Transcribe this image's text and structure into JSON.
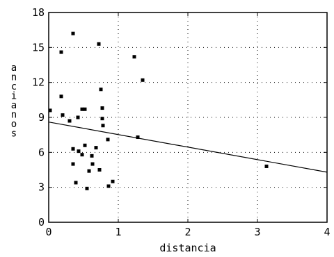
{
  "chart_data": {
    "type": "scatter",
    "xlabel": "distancia",
    "ylabel": "ancianos",
    "xlim": [
      0,
      4
    ],
    "ylim": [
      0,
      18
    ],
    "xticks": [
      0,
      1,
      2,
      3,
      4
    ],
    "yticks": [
      0,
      3,
      6,
      9,
      12,
      15,
      18
    ],
    "grid": true,
    "points": [
      {
        "x": 0.02,
        "y": 9.6
      },
      {
        "x": 0.18,
        "y": 14.6
      },
      {
        "x": 0.18,
        "y": 10.8
      },
      {
        "x": 0.2,
        "y": 9.2
      },
      {
        "x": 0.3,
        "y": 8.7
      },
      {
        "x": 0.35,
        "y": 16.2
      },
      {
        "x": 0.35,
        "y": 6.3
      },
      {
        "x": 0.35,
        "y": 5.0
      },
      {
        "x": 0.39,
        "y": 3.4
      },
      {
        "x": 0.42,
        "y": 9.0
      },
      {
        "x": 0.43,
        "y": 6.1
      },
      {
        "x": 0.48,
        "y": 9.7
      },
      {
        "x": 0.48,
        "y": 5.8
      },
      {
        "x": 0.52,
        "y": 6.6
      },
      {
        "x": 0.52,
        "y": 9.7
      },
      {
        "x": 0.55,
        "y": 2.9
      },
      {
        "x": 0.58,
        "y": 4.4
      },
      {
        "x": 0.62,
        "y": 5.7
      },
      {
        "x": 0.63,
        "y": 5.0
      },
      {
        "x": 0.68,
        "y": 6.4
      },
      {
        "x": 0.72,
        "y": 15.3
      },
      {
        "x": 0.73,
        "y": 4.5
      },
      {
        "x": 0.75,
        "y": 11.4
      },
      {
        "x": 0.77,
        "y": 9.8
      },
      {
        "x": 0.77,
        "y": 8.9
      },
      {
        "x": 0.78,
        "y": 8.3
      },
      {
        "x": 0.85,
        "y": 7.1
      },
      {
        "x": 0.86,
        "y": 3.1
      },
      {
        "x": 0.92,
        "y": 3.5
      },
      {
        "x": 1.23,
        "y": 14.2
      },
      {
        "x": 1.28,
        "y": 7.3
      },
      {
        "x": 1.35,
        "y": 12.2
      },
      {
        "x": 3.13,
        "y": 4.8
      }
    ],
    "regression": {
      "x": [
        0,
        4
      ],
      "y": [
        8.6,
        4.3
      ]
    }
  }
}
